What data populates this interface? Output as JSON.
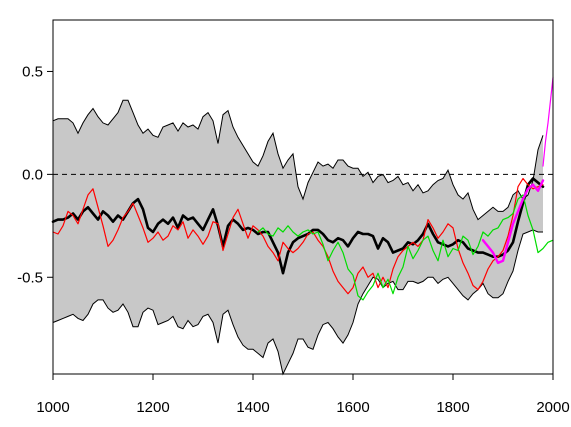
{
  "chart_data": {
    "type": "line",
    "title": "",
    "xlabel": "",
    "ylabel": "",
    "xlim": [
      1000,
      2000
    ],
    "ylim": [
      -0.97,
      0.75
    ],
    "x_ticks": [
      1000,
      1200,
      1400,
      1600,
      1800,
      2000
    ],
    "x_tick_labels": [
      "1000",
      "1200",
      "1400",
      "1600",
      "1800",
      "2000"
    ],
    "y_ticks": [
      -0.5,
      0.0,
      0.5
    ],
    "y_tick_labels": [
      "-0.5",
      "0.0",
      "0.5"
    ],
    "reference_line": {
      "y": 0.0,
      "style": "dashed",
      "color": "#000000"
    },
    "grid": false,
    "legend": "none",
    "band": {
      "color": "#c8c8c8",
      "x": [
        1000,
        1010,
        1020,
        1030,
        1040,
        1050,
        1060,
        1070,
        1080,
        1090,
        1100,
        1110,
        1120,
        1130,
        1140,
        1150,
        1160,
        1170,
        1180,
        1190,
        1200,
        1210,
        1220,
        1230,
        1240,
        1250,
        1260,
        1270,
        1280,
        1290,
        1300,
        1310,
        1320,
        1330,
        1340,
        1350,
        1360,
        1370,
        1380,
        1390,
        1400,
        1410,
        1420,
        1430,
        1440,
        1450,
        1460,
        1470,
        1480,
        1490,
        1500,
        1510,
        1520,
        1530,
        1540,
        1550,
        1560,
        1570,
        1580,
        1590,
        1600,
        1610,
        1620,
        1630,
        1640,
        1650,
        1660,
        1670,
        1680,
        1690,
        1700,
        1710,
        1720,
        1730,
        1740,
        1750,
        1760,
        1770,
        1780,
        1790,
        1800,
        1810,
        1820,
        1830,
        1840,
        1850,
        1860,
        1870,
        1880,
        1890,
        1900,
        1910,
        1920,
        1930,
        1940,
        1950,
        1960,
        1970,
        1980
      ],
      "upper": [
        0.26,
        0.27,
        0.27,
        0.27,
        0.25,
        0.2,
        0.25,
        0.29,
        0.32,
        0.28,
        0.25,
        0.24,
        0.27,
        0.3,
        0.36,
        0.36,
        0.3,
        0.24,
        0.2,
        0.22,
        0.19,
        0.18,
        0.23,
        0.24,
        0.25,
        0.21,
        0.25,
        0.23,
        0.24,
        0.22,
        0.28,
        0.3,
        0.26,
        0.15,
        0.29,
        0.31,
        0.23,
        0.18,
        0.14,
        0.1,
        0.06,
        0.04,
        0.09,
        0.16,
        0.2,
        0.1,
        0.03,
        0.07,
        0.1,
        -0.06,
        -0.12,
        -0.04,
        0.01,
        0.06,
        0.04,
        0.05,
        0.03,
        0.07,
        0.07,
        0.04,
        0.03,
        0.03,
        -0.01,
        0.01,
        -0.04,
        -0.01,
        0.0,
        -0.04,
        -0.03,
        -0.01,
        -0.05,
        -0.04,
        -0.08,
        -0.05,
        -0.09,
        -0.08,
        -0.05,
        -0.03,
        -0.02,
        0.02,
        -0.05,
        -0.1,
        -0.12,
        -0.09,
        -0.17,
        -0.22,
        -0.2,
        -0.18,
        -0.16,
        -0.18,
        -0.18,
        -0.16,
        -0.1,
        -0.08,
        -0.12,
        -0.1,
        -0.03,
        0.12,
        0.19
      ],
      "lower": [
        -0.72,
        -0.71,
        -0.7,
        -0.69,
        -0.68,
        -0.7,
        -0.71,
        -0.68,
        -0.63,
        -0.61,
        -0.61,
        -0.65,
        -0.67,
        -0.66,
        -0.63,
        -0.67,
        -0.74,
        -0.74,
        -0.67,
        -0.65,
        -0.66,
        -0.73,
        -0.72,
        -0.71,
        -0.69,
        -0.74,
        -0.75,
        -0.71,
        -0.74,
        -0.73,
        -0.69,
        -0.68,
        -0.72,
        -0.82,
        -0.68,
        -0.66,
        -0.73,
        -0.79,
        -0.83,
        -0.85,
        -0.85,
        -0.87,
        -0.89,
        -0.82,
        -0.8,
        -0.86,
        -0.97,
        -0.92,
        -0.87,
        -0.8,
        -0.8,
        -0.84,
        -0.85,
        -0.78,
        -0.73,
        -0.72,
        -0.75,
        -0.79,
        -0.82,
        -0.78,
        -0.72,
        -0.63,
        -0.58,
        -0.54,
        -0.5,
        -0.51,
        -0.55,
        -0.53,
        -0.52,
        -0.56,
        -0.56,
        -0.52,
        -0.52,
        -0.53,
        -0.52,
        -0.5,
        -0.5,
        -0.53,
        -0.51,
        -0.5,
        -0.53,
        -0.56,
        -0.59,
        -0.61,
        -0.58,
        -0.56,
        -0.53,
        -0.58,
        -0.6,
        -0.6,
        -0.58,
        -0.52,
        -0.47,
        -0.37,
        -0.29,
        -0.28,
        -0.27,
        -0.28,
        -0.28
      ]
    },
    "series": [
      {
        "color": "#000000",
        "width": 2.6,
        "x": [
          1000,
          1010,
          1020,
          1030,
          1040,
          1050,
          1060,
          1070,
          1080,
          1090,
          1100,
          1110,
          1120,
          1130,
          1140,
          1150,
          1160,
          1170,
          1180,
          1190,
          1200,
          1210,
          1220,
          1230,
          1240,
          1250,
          1260,
          1270,
          1280,
          1290,
          1300,
          1310,
          1320,
          1330,
          1340,
          1350,
          1360,
          1370,
          1380,
          1390,
          1400,
          1410,
          1420,
          1430,
          1440,
          1450,
          1460,
          1470,
          1480,
          1490,
          1500,
          1510,
          1520,
          1530,
          1540,
          1550,
          1560,
          1570,
          1580,
          1590,
          1600,
          1610,
          1620,
          1630,
          1640,
          1650,
          1660,
          1670,
          1680,
          1690,
          1700,
          1710,
          1720,
          1730,
          1740,
          1750,
          1760,
          1770,
          1780,
          1790,
          1800,
          1810,
          1820,
          1830,
          1840,
          1850,
          1860,
          1870,
          1880,
          1890,
          1900,
          1910,
          1920,
          1930,
          1940,
          1950,
          1960,
          1970,
          1980
        ],
        "y": [
          -0.23,
          -0.22,
          -0.22,
          -0.21,
          -0.19,
          -0.22,
          -0.18,
          -0.16,
          -0.19,
          -0.22,
          -0.18,
          -0.2,
          -0.23,
          -0.2,
          -0.22,
          -0.18,
          -0.14,
          -0.12,
          -0.17,
          -0.26,
          -0.28,
          -0.24,
          -0.22,
          -0.24,
          -0.21,
          -0.26,
          -0.2,
          -0.22,
          -0.21,
          -0.24,
          -0.27,
          -0.22,
          -0.17,
          -0.25,
          -0.35,
          -0.25,
          -0.22,
          -0.24,
          -0.27,
          -0.26,
          -0.27,
          -0.29,
          -0.28,
          -0.28,
          -0.33,
          -0.38,
          -0.48,
          -0.38,
          -0.33,
          -0.31,
          -0.3,
          -0.29,
          -0.27,
          -0.27,
          -0.29,
          -0.32,
          -0.33,
          -0.31,
          -0.32,
          -0.35,
          -0.31,
          -0.28,
          -0.29,
          -0.29,
          -0.3,
          -0.36,
          -0.31,
          -0.33,
          -0.38,
          -0.37,
          -0.36,
          -0.33,
          -0.34,
          -0.32,
          -0.29,
          -0.24,
          -0.29,
          -0.33,
          -0.34,
          -0.35,
          -0.34,
          -0.32,
          -0.33,
          -0.36,
          -0.37,
          -0.38,
          -0.38,
          -0.39,
          -0.4,
          -0.4,
          -0.39,
          -0.37,
          -0.33,
          -0.23,
          -0.14,
          -0.05,
          -0.02,
          -0.04,
          -0.06
        ]
      },
      {
        "color": "#ff0000",
        "width": 1.2,
        "x": [
          1000,
          1010,
          1020,
          1030,
          1040,
          1050,
          1060,
          1070,
          1080,
          1090,
          1100,
          1110,
          1120,
          1130,
          1140,
          1150,
          1160,
          1170,
          1180,
          1190,
          1200,
          1210,
          1220,
          1230,
          1240,
          1250,
          1260,
          1270,
          1280,
          1290,
          1300,
          1310,
          1320,
          1330,
          1340,
          1350,
          1360,
          1370,
          1380,
          1390,
          1400,
          1410,
          1420,
          1430,
          1440,
          1450,
          1460,
          1470,
          1480,
          1490,
          1500,
          1510,
          1520,
          1530,
          1540,
          1550,
          1560,
          1570,
          1580,
          1590,
          1600,
          1610,
          1620,
          1630,
          1640,
          1650,
          1660,
          1670,
          1680,
          1690,
          1700,
          1710,
          1720,
          1730,
          1740,
          1750,
          1760,
          1770,
          1780,
          1790,
          1800,
          1810,
          1820,
          1830,
          1840,
          1850,
          1860,
          1870,
          1880,
          1890,
          1900,
          1910,
          1920,
          1930,
          1940,
          1950,
          1960,
          1970,
          1980
        ],
        "y": [
          -0.28,
          -0.29,
          -0.25,
          -0.18,
          -0.2,
          -0.24,
          -0.17,
          -0.1,
          -0.07,
          -0.16,
          -0.25,
          -0.35,
          -0.32,
          -0.27,
          -0.21,
          -0.18,
          -0.14,
          -0.2,
          -0.26,
          -0.33,
          -0.31,
          -0.28,
          -0.32,
          -0.3,
          -0.25,
          -0.27,
          -0.23,
          -0.31,
          -0.27,
          -0.3,
          -0.34,
          -0.3,
          -0.23,
          -0.24,
          -0.37,
          -0.29,
          -0.21,
          -0.17,
          -0.24,
          -0.31,
          -0.25,
          -0.27,
          -0.3,
          -0.35,
          -0.38,
          -0.42,
          -0.33,
          -0.36,
          -0.38,
          -0.36,
          -0.33,
          -0.29,
          -0.28,
          -0.32,
          -0.35,
          -0.4,
          -0.47,
          -0.52,
          -0.55,
          -0.58,
          -0.55,
          -0.48,
          -0.45,
          -0.5,
          -0.48,
          -0.55,
          -0.5,
          -0.55,
          -0.46,
          -0.4,
          -0.37,
          -0.35,
          -0.33,
          -0.35,
          -0.32,
          -0.22,
          -0.26,
          -0.31,
          -0.28,
          -0.24,
          -0.26,
          -0.36,
          -0.43,
          -0.48,
          -0.54,
          -0.56,
          -0.52,
          -0.46,
          -0.42,
          -0.4,
          -0.37,
          -0.3,
          -0.2,
          -0.06,
          -0.02,
          -0.05,
          -0.07,
          -0.06,
          -0.05
        ]
      },
      {
        "color": "#00dd00",
        "width": 1.2,
        "x": [
          1410,
          1420,
          1430,
          1440,
          1450,
          1460,
          1470,
          1480,
          1490,
          1500,
          1510,
          1520,
          1530,
          1540,
          1550,
          1560,
          1570,
          1580,
          1590,
          1600,
          1610,
          1620,
          1630,
          1640,
          1650,
          1660,
          1670,
          1680,
          1690,
          1700,
          1710,
          1720,
          1730,
          1740,
          1750,
          1760,
          1770,
          1780,
          1790,
          1800,
          1810,
          1820,
          1830,
          1840,
          1850,
          1860,
          1870,
          1880,
          1890,
          1900,
          1910,
          1920,
          1930,
          1940,
          1950,
          1960,
          1970,
          1980,
          1990,
          2000
        ],
        "y": [
          -0.28,
          -0.26,
          -0.29,
          -0.3,
          -0.26,
          -0.28,
          -0.25,
          -0.28,
          -0.3,
          -0.28,
          -0.27,
          -0.29,
          -0.28,
          -0.34,
          -0.42,
          -0.37,
          -0.33,
          -0.38,
          -0.46,
          -0.49,
          -0.59,
          -0.61,
          -0.57,
          -0.54,
          -0.48,
          -0.55,
          -0.51,
          -0.58,
          -0.5,
          -0.45,
          -0.35,
          -0.41,
          -0.37,
          -0.32,
          -0.3,
          -0.37,
          -0.42,
          -0.32,
          -0.4,
          -0.36,
          -0.37,
          -0.3,
          -0.32,
          -0.39,
          -0.35,
          -0.28,
          -0.3,
          -0.27,
          -0.26,
          -0.22,
          -0.21,
          -0.19,
          -0.12,
          -0.1,
          -0.2,
          -0.27,
          -0.38,
          -0.36,
          -0.33,
          -0.32
        ]
      },
      {
        "color": "#ff00ff",
        "width": 2.4,
        "x": [
          1860,
          1870,
          1880,
          1890,
          1900,
          1910,
          1920,
          1930,
          1940,
          1950,
          1960,
          1970,
          1980
        ],
        "y": [
          -0.32,
          -0.35,
          -0.38,
          -0.43,
          -0.42,
          -0.33,
          -0.24,
          -0.18,
          -0.12,
          -0.07,
          -0.05,
          -0.08,
          -0.03
        ]
      },
      {
        "color": "#ff00ff",
        "width": 1.2,
        "x": [
          1980,
          1985,
          1990,
          1995,
          2000
        ],
        "y": [
          0.04,
          0.16,
          0.25,
          0.36,
          0.47
        ]
      }
    ]
  }
}
